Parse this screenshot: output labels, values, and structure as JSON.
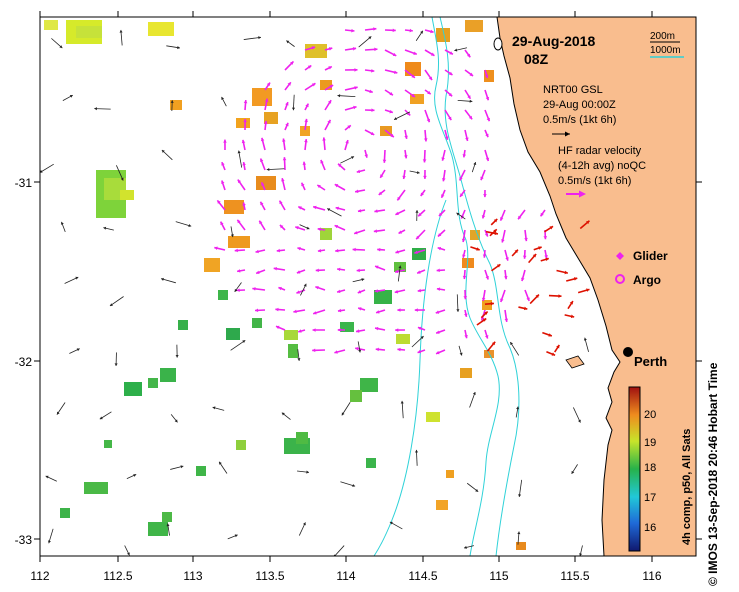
{
  "title": {
    "date": "29-Aug-2018",
    "time": "08Z"
  },
  "scale": {
    "small": "200m",
    "large": "1000m"
  },
  "legend_text": {
    "gsl_title": "NRT00 GSL",
    "gsl_time": "29-Aug 00:00Z",
    "gsl_speed": "0.5m/s (1kt 6h)",
    "hf_title": "HF radar velocity",
    "hf_avg": "(4-12h avg) noQC",
    "hf_speed": "0.5m/s (1kt 6h)",
    "glider": "Glider",
    "argo": "Argo"
  },
  "city": "Perth",
  "axes": {
    "x_ticks": [
      "112",
      "112.5",
      "113",
      "113.5",
      "114",
      "114.5",
      "115",
      "115.5",
      "116"
    ],
    "y_ticks": [
      "-31",
      "-32",
      "-33"
    ]
  },
  "colorbar": {
    "label": "4h comp, p50, All Sats",
    "ticks": [
      "16",
      "17",
      "18",
      "19",
      "20"
    ],
    "range": [
      15.4,
      20.8
    ]
  },
  "credit": "© IMOS 13-Sep-2018 20:46 Hobart Time",
  "colors": {
    "land": "#f9bd8e",
    "isobath": "#2fd2d8",
    "radar": "#ee22ee",
    "gsl": "#222222",
    "hf_arrow": "#dd1100"
  }
}
